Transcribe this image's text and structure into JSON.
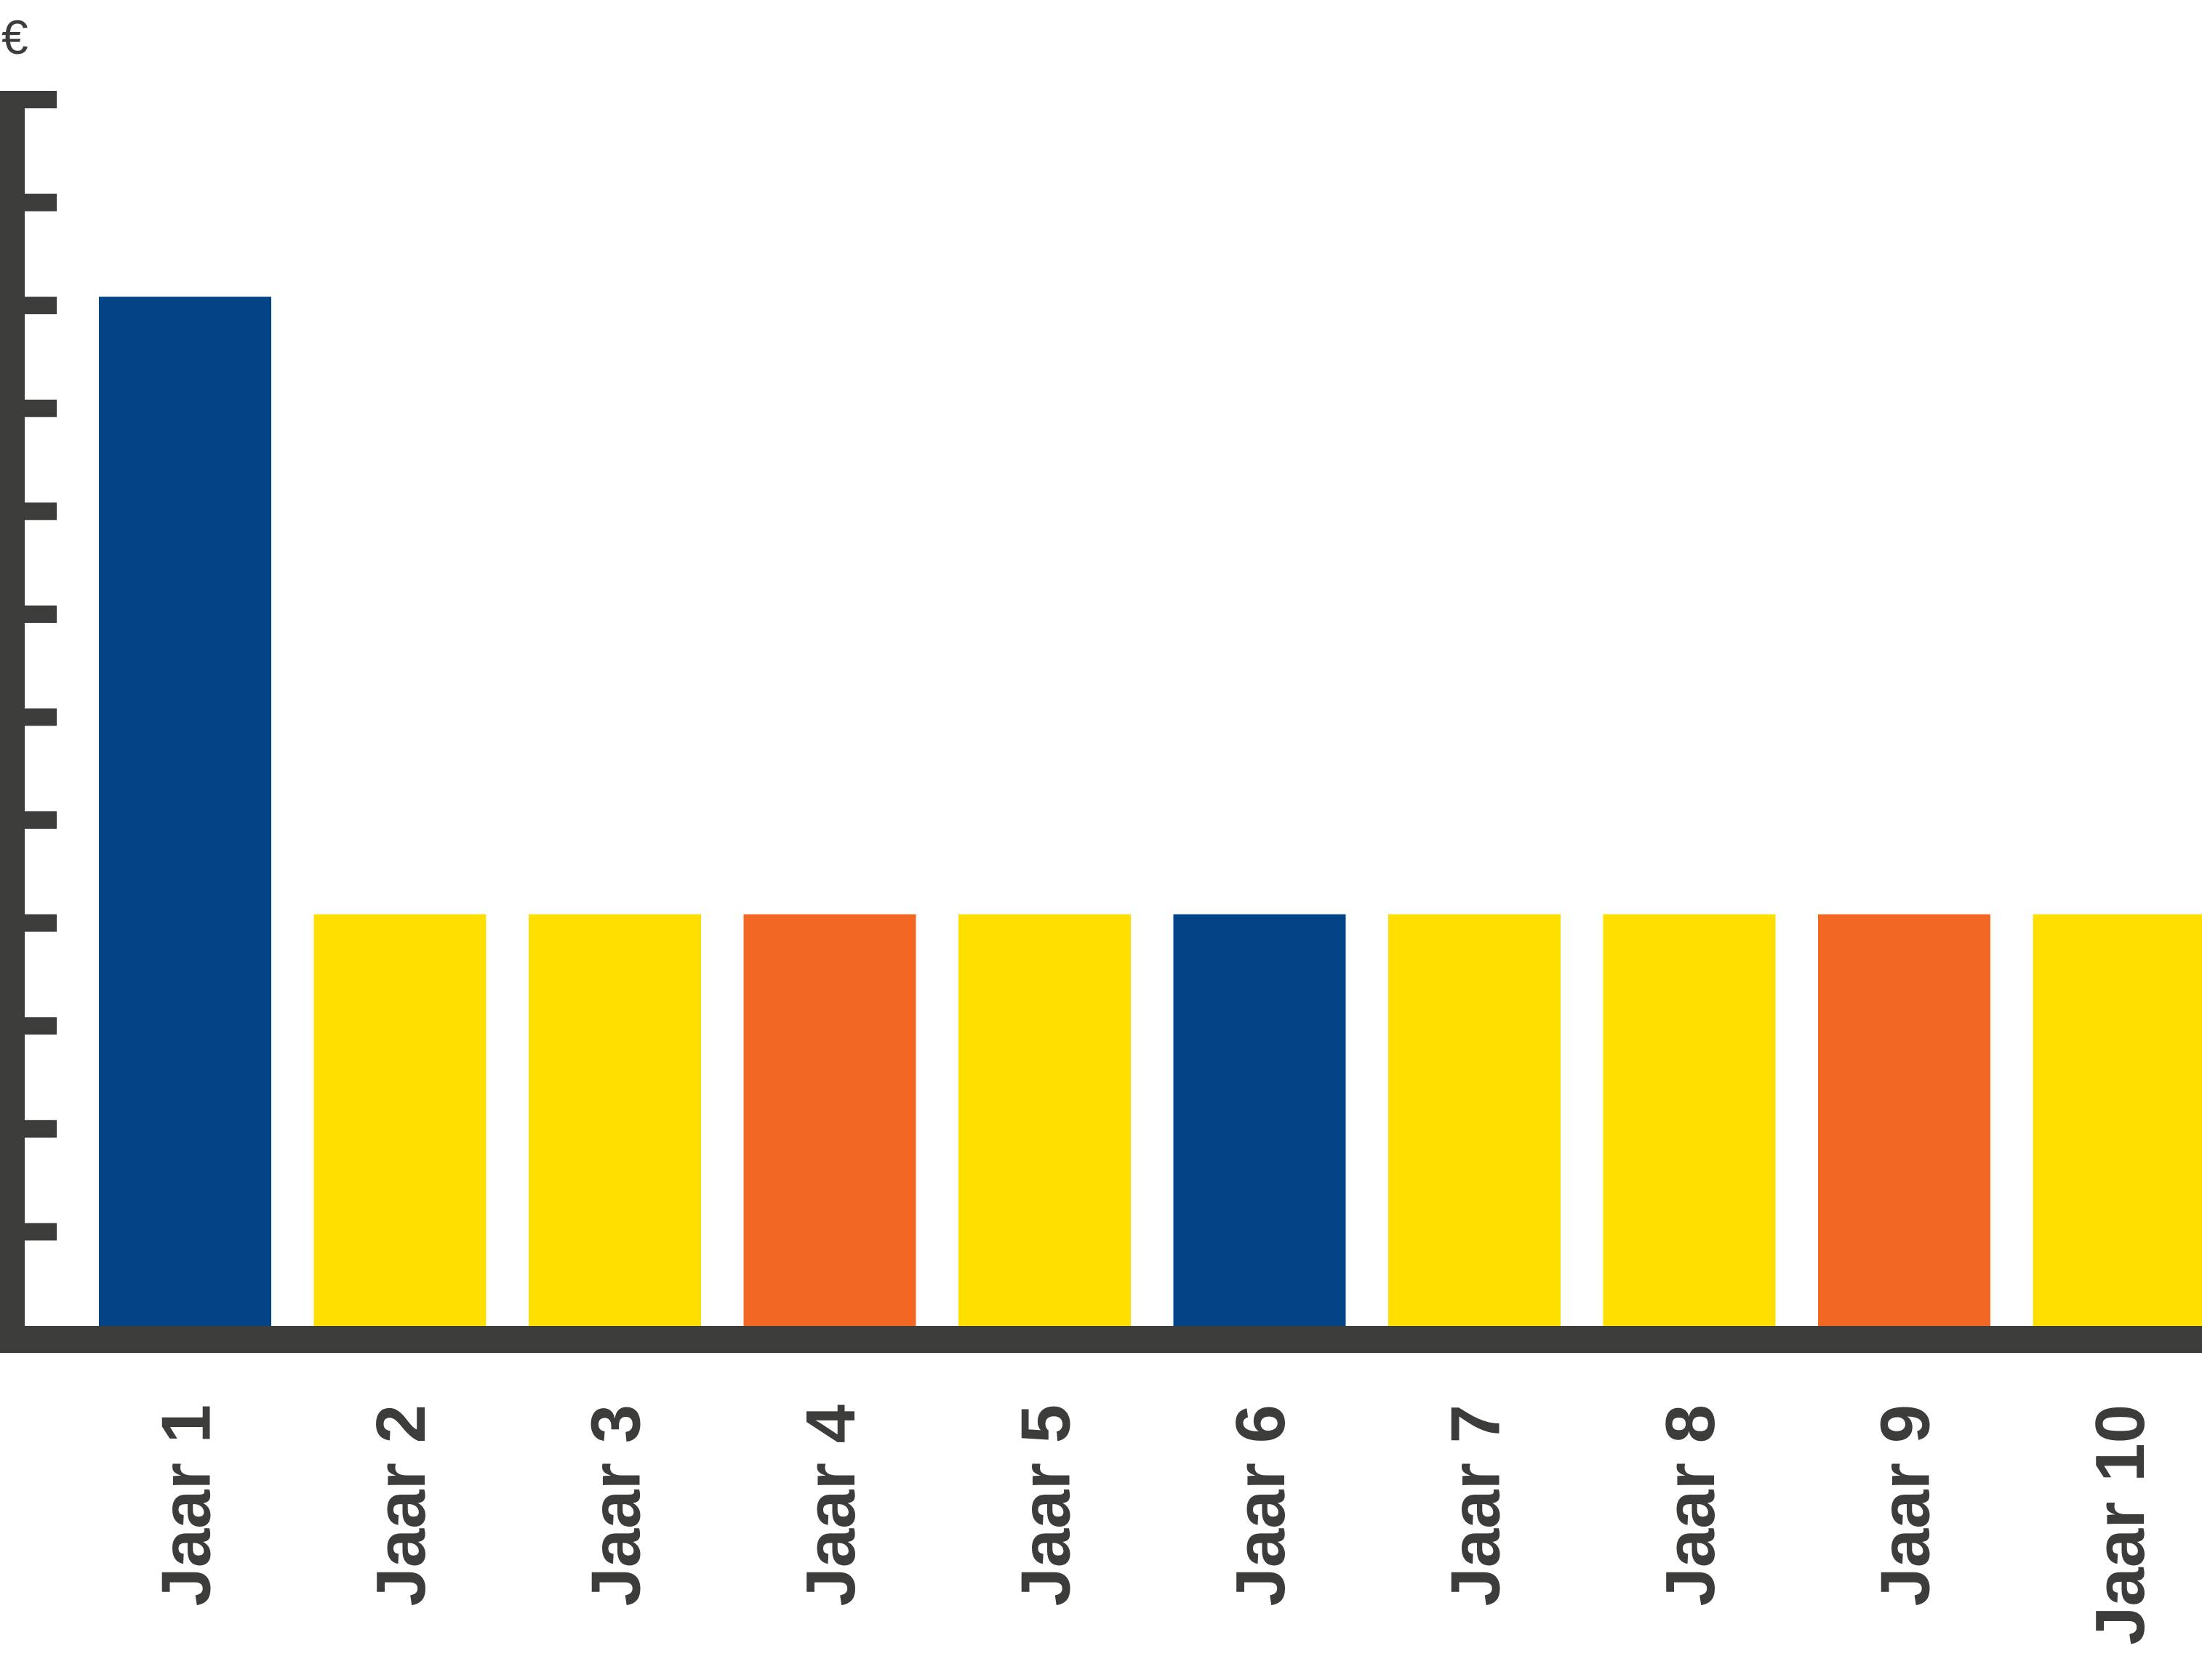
{
  "chart_data": {
    "type": "bar",
    "title": "",
    "xlabel": "",
    "ylabel": "€",
    "categories": [
      "Jaar 1",
      "Jaar 2",
      "Jaar 3",
      "Jaar 4",
      "Jaar 5",
      "Jaar 6",
      "Jaar 7",
      "Jaar 8",
      "Jaar 9",
      "Jaar 10"
    ],
    "values": [
      10,
      4,
      4,
      4,
      4,
      4,
      4,
      4,
      4,
      4
    ],
    "bar_colors": [
      "#024486",
      "#ffdf00",
      "#ffdf00",
      "#f26722",
      "#ffdf00",
      "#024486",
      "#ffdf00",
      "#ffdf00",
      "#f26722",
      "#ffdf00"
    ],
    "ylim": [
      0,
      12
    ],
    "y_tick_count": 12,
    "y_tick_labels_shown": false,
    "grid": false,
    "legend": "none",
    "axis_color": "#3c3c3b"
  }
}
